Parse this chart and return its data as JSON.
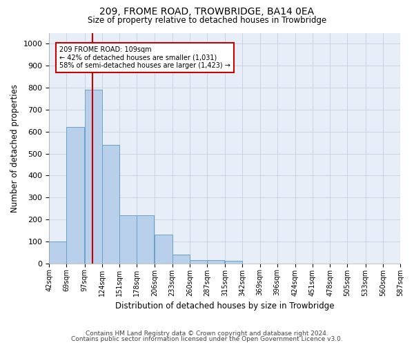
{
  "title1": "209, FROME ROAD, TROWBRIDGE, BA14 0EA",
  "title2": "Size of property relative to detached houses in Trowbridge",
  "xlabel": "Distribution of detached houses by size in Trowbridge",
  "ylabel": "Number of detached properties",
  "footer1": "Contains HM Land Registry data © Crown copyright and database right 2024.",
  "footer2": "Contains public sector information licensed under the Open Government Licence v3.0.",
  "annotation_line1": "209 FROME ROAD: 109sqm",
  "annotation_line2": "← 42% of detached houses are smaller (1,031)",
  "annotation_line3": "58% of semi-detached houses are larger (1,423) →",
  "bar_color": "#b8d0ea",
  "bar_edge_color": "#6aa0cc",
  "vline_color": "#cc0000",
  "vline_x": 109,
  "bins": [
    42,
    69,
    97,
    124,
    151,
    178,
    206,
    233,
    260,
    287,
    315,
    342,
    369,
    396,
    424,
    451,
    478,
    505,
    533,
    560,
    587
  ],
  "bar_values": [
    100,
    620,
    790,
    540,
    220,
    220,
    130,
    40,
    15,
    15,
    10,
    0,
    0,
    0,
    0,
    0,
    0,
    0,
    0,
    0
  ],
  "ylim": [
    0,
    1050
  ],
  "yticks": [
    0,
    100,
    200,
    300,
    400,
    500,
    600,
    700,
    800,
    900,
    1000
  ],
  "background_color": "#e8eef8",
  "plot_bg_color": "#e8eef8",
  "grid_color": "#c5cfe0"
}
